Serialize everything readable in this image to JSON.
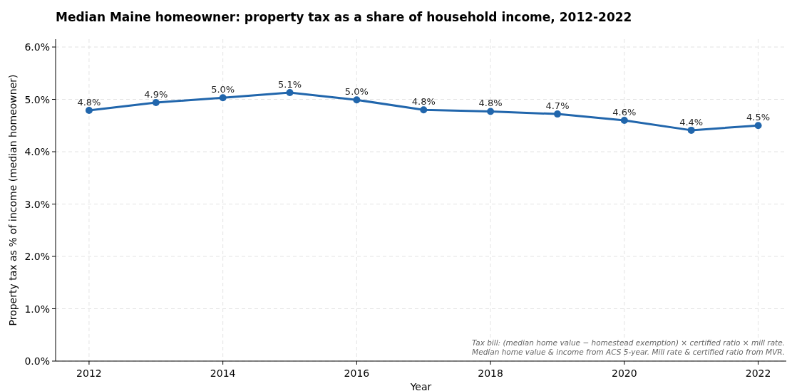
{
  "chart_data": {
    "type": "line",
    "title": "Median Maine homeowner: property tax as a share of household income, 2012-2022",
    "xlabel": "Year",
    "ylabel": "Property tax as % of income (median homeowner)",
    "x": [
      2012,
      2013,
      2014,
      2015,
      2016,
      2017,
      2018,
      2019,
      2020,
      2021,
      2022
    ],
    "series": [
      {
        "color": "#2166ac",
        "values": [
          4.79,
          4.94,
          5.03,
          5.13,
          4.99,
          4.8,
          4.77,
          4.72,
          4.6,
          4.41,
          4.5
        ],
        "value_labels": [
          "4.8%",
          "4.9%",
          "5.0%",
          "5.1%",
          "5.0%",
          "4.8%",
          "4.8%",
          "4.7%",
          "4.6%",
          "4.4%",
          "4.5%"
        ]
      }
    ],
    "xlim": [
      2011.5,
      2022.42
    ],
    "xticks": [
      2012,
      2014,
      2016,
      2018,
      2020,
      2022
    ],
    "ylim": [
      0,
      6.15
    ],
    "yticks": [
      {
        "value": 0,
        "label": "0.0%"
      },
      {
        "value": 1,
        "label": "1.0%"
      },
      {
        "value": 2,
        "label": "2.0%"
      },
      {
        "value": 3,
        "label": "3.0%"
      },
      {
        "value": 4,
        "label": "4.0%"
      },
      {
        "value": 5,
        "label": "5.0%"
      },
      {
        "value": 6,
        "label": "6.0%"
      }
    ],
    "grid": true,
    "marker": "circle",
    "line_style": "solid",
    "annotations": [
      "Tax bill: (median home value − homestead exemption) × certified ratio × mill rate.",
      "Median home value & income from ACS 5-year. Mill rate & certified ratio from MVR."
    ]
  }
}
